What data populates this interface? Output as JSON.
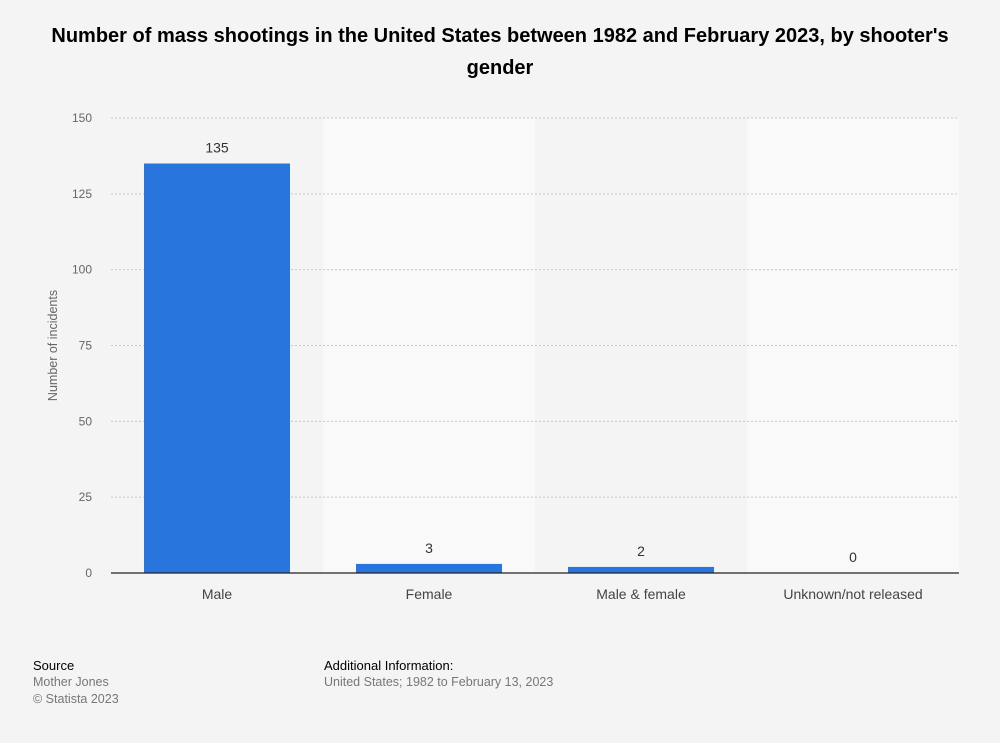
{
  "chart_data": {
    "type": "bar",
    "title": "Number of mass shootings in the United States between 1982 and February 2023, by shooter's gender",
    "categories": [
      "Male",
      "Female",
      "Male & female",
      "Unknown/not released"
    ],
    "values": [
      135,
      3,
      2,
      0
    ],
    "xlabel": "",
    "ylabel": "Number of incidents",
    "ylim": [
      0,
      150
    ],
    "yticks": [
      0,
      25,
      50,
      75,
      100,
      125,
      150
    ],
    "grid": true,
    "bar_color": "#2775dd"
  },
  "footer": {
    "source_label": "Source",
    "source_name": "Mother Jones",
    "copyright": "© Statista 2023",
    "additional_label": "Additional Information:",
    "additional_text": "United States; 1982 to February 13, 2023"
  }
}
